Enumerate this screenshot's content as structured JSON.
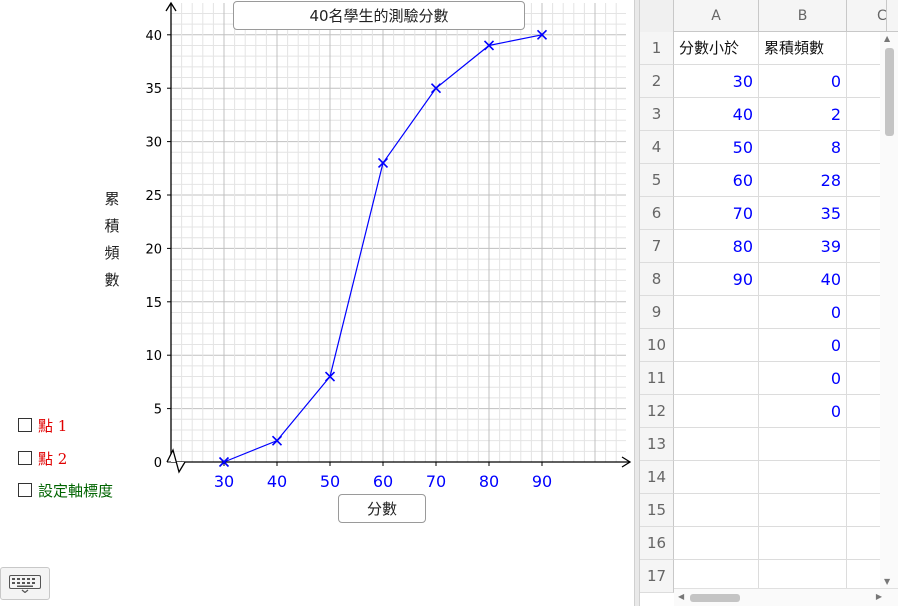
{
  "graphics": {
    "title": "40名學生的測驗分數",
    "xlabel": "分數",
    "ylabel": "累積頻數",
    "checkboxes": [
      {
        "label": "點 1",
        "color": "#e00000"
      },
      {
        "label": "點 2",
        "color": "#e00000"
      },
      {
        "label": "設定軸標度",
        "color": "#006400"
      }
    ]
  },
  "chart_data": {
    "type": "line",
    "title": "40名學生的測驗分數",
    "xlabel": "分數",
    "ylabel": "累積頻數",
    "x": [
      30,
      40,
      50,
      60,
      70,
      80,
      90
    ],
    "series": [
      {
        "values": [
          0,
          2,
          8,
          28,
          35,
          39,
          40
        ],
        "color": "#0000ff",
        "marker": "x"
      }
    ],
    "xticks": [
      30,
      40,
      50,
      60,
      70,
      80,
      90
    ],
    "yticks": [
      0,
      5,
      10,
      15,
      20,
      25,
      30,
      35,
      40
    ],
    "xlim": [
      20,
      105
    ],
    "ylim": [
      0,
      43
    ],
    "grid": true,
    "axis_break_x": true
  },
  "spreadsheet": {
    "columns": [
      "A",
      "B",
      "C"
    ],
    "rows": [
      {
        "n": "1",
        "a": "分數小於",
        "b": "累積頻數",
        "type": "text"
      },
      {
        "n": "2",
        "a": "30",
        "b": "0"
      },
      {
        "n": "3",
        "a": "40",
        "b": "2"
      },
      {
        "n": "4",
        "a": "50",
        "b": "8"
      },
      {
        "n": "5",
        "a": "60",
        "b": "28"
      },
      {
        "n": "6",
        "a": "70",
        "b": "35"
      },
      {
        "n": "7",
        "a": "80",
        "b": "39"
      },
      {
        "n": "8",
        "a": "90",
        "b": "40"
      },
      {
        "n": "9",
        "a": "",
        "b": "0"
      },
      {
        "n": "10",
        "a": "",
        "b": "0"
      },
      {
        "n": "11",
        "a": "",
        "b": "0"
      },
      {
        "n": "12",
        "a": "",
        "b": "0"
      },
      {
        "n": "13",
        "a": "",
        "b": ""
      },
      {
        "n": "14",
        "a": "",
        "b": ""
      },
      {
        "n": "15",
        "a": "",
        "b": ""
      },
      {
        "n": "16",
        "a": "",
        "b": ""
      },
      {
        "n": "17",
        "a": "",
        "b": ""
      }
    ]
  },
  "icons": {
    "keyboard": "keyboard-icon"
  }
}
